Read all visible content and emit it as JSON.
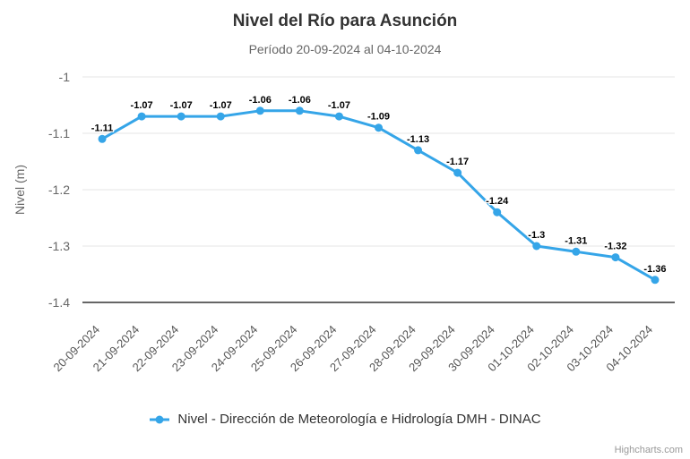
{
  "chart_data": {
    "type": "line",
    "title": "Nivel del Río para Asunción",
    "subtitle": "Período 20-09-2024 al 04-10-2024",
    "xlabel": "",
    "ylabel": "Nivel (m)",
    "categories": [
      "20-09-2024",
      "21-09-2024",
      "22-09-2024",
      "23-09-2024",
      "24-09-2024",
      "25-09-2024",
      "26-09-2024",
      "27-09-2024",
      "28-09-2024",
      "29-09-2024",
      "30-09-2024",
      "01-10-2024",
      "02-10-2024",
      "03-10-2024",
      "04-10-2024"
    ],
    "series": [
      {
        "name": "Nivel - Dirección de Meteorología e Hidrología DMH - DINAC",
        "values": [
          -1.11,
          -1.07,
          -1.07,
          -1.07,
          -1.06,
          -1.06,
          -1.07,
          -1.09,
          -1.13,
          -1.17,
          -1.24,
          -1.3,
          -1.31,
          -1.32,
          -1.36
        ],
        "labels": [
          "-1.11",
          "-1.07",
          "-1.07",
          "-1.07",
          "-1.06",
          "-1.06",
          "-1.07",
          "-1.09",
          "-1.13",
          "-1.17",
          "-1.24",
          "-1.3",
          "-1.31",
          "-1.32",
          "-1.36"
        ]
      }
    ],
    "ylim": [
      -1.4,
      -1.0
    ],
    "yticks": [
      -1,
      -1.1,
      -1.2,
      -1.3,
      -1.4
    ],
    "ytick_labels": [
      "-1",
      "-1.1",
      "-1.2",
      "-1.3",
      "-1.4"
    ],
    "grid": true,
    "legend_position": "bottom-center"
  },
  "colors": {
    "series": "#35a5e8",
    "grid": "#e6e6e6",
    "axis_line": "#666666",
    "title": "#333333",
    "subtitle": "#666666",
    "ytick_label": "#666666",
    "xtick_label": "#555555",
    "data_label": "#000000",
    "data_label_halo": "#ffffff"
  },
  "credits": {
    "text": "Highcharts.com"
  }
}
